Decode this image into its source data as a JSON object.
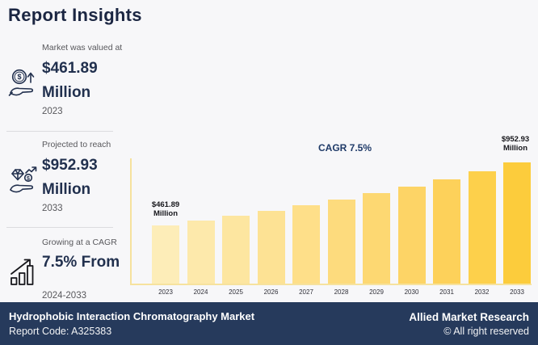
{
  "page": {
    "title": "Report Insights",
    "background": "#f7f7f9",
    "accent_navy": "#21304e"
  },
  "stats": [
    {
      "icon": "money-growth-hand-icon",
      "label": "Market was valued at",
      "value_line1": "$461.89",
      "value_line2": "Million",
      "period": "2023"
    },
    {
      "icon": "diamond-hand-icon",
      "label": "Projected to reach",
      "value_line1": "$952.93",
      "value_line2": "Million",
      "period": "2033"
    },
    {
      "icon": "growth-chart-icon",
      "label": "Growing at a CAGR",
      "value_line1": "7.5% From",
      "value_line2": "",
      "period": "2024-2033"
    }
  ],
  "chart_data": {
    "type": "bar",
    "title": "",
    "xlabel": "",
    "ylabel": "",
    "categories": [
      "2023",
      "2024",
      "2025",
      "2026",
      "2027",
      "2028",
      "2029",
      "2030",
      "2031",
      "2032",
      "2033"
    ],
    "values": [
      461.89,
      496.53,
      533.77,
      573.8,
      616.84,
      663.1,
      712.83,
      766.29,
      823.77,
      885.55,
      952.93
    ],
    "ylim": [
      0,
      1000
    ],
    "grid": false,
    "legend": false,
    "cagr_label": "CAGR 7.5%",
    "axis_color": "#f6e29e",
    "bar_colors": [
      "#fdedb8",
      "#fde9ab",
      "#fde6a0",
      "#fde294",
      "#fedf89",
      "#fddb7d",
      "#fdd872",
      "#fdd466",
      "#fdd15a",
      "#fdd04b",
      "#fccc3c"
    ],
    "annotations": [
      {
        "bar": "2023",
        "line1": "$461.89",
        "line2": "Million"
      },
      {
        "bar": "2033",
        "line1": "$952.93",
        "line2": "Million"
      }
    ]
  },
  "footer": {
    "title": "Hydrophobic Interaction Chromatography Market",
    "report_code": "Report Code: A325383",
    "brand": "Allied Market Research",
    "rights": "© All right reserved",
    "background": "#263a5c"
  }
}
